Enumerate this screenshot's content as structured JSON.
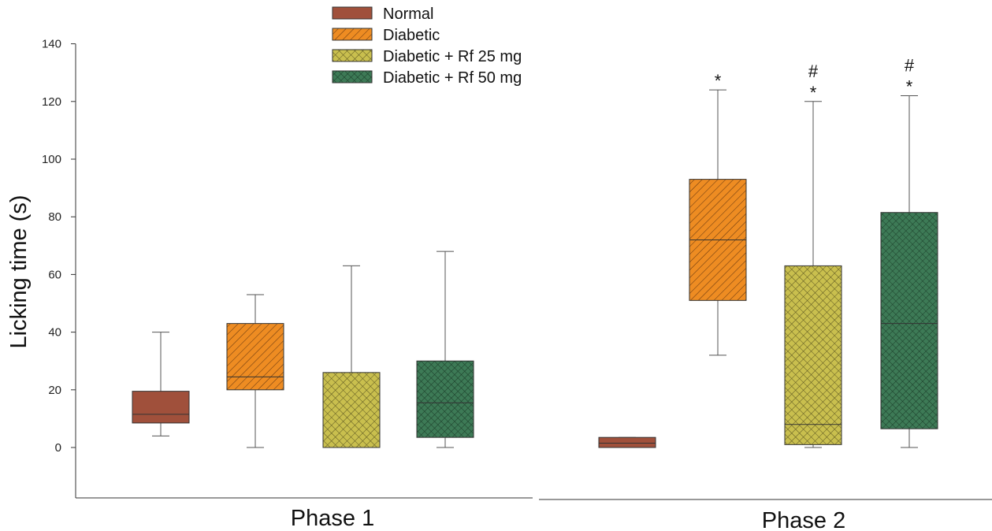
{
  "chart_data": {
    "type": "box",
    "ylabel": "Licking time (s)",
    "ylim": [
      -18,
      140
    ],
    "yticks": [
      0,
      20,
      40,
      60,
      80,
      100,
      120,
      140
    ],
    "grid": false,
    "legend_position": "top-center",
    "groups": [
      "Phase 1",
      "Phase 2"
    ],
    "series": [
      {
        "name": "Normal",
        "color": "#a0503b",
        "pattern": "solid"
      },
      {
        "name": "Diabetic",
        "color": "#ee8c22",
        "pattern": "diagonal"
      },
      {
        "name": "Diabetic + Rf 25 mg",
        "color": "#c9bf4e",
        "pattern": "crosshatch"
      },
      {
        "name": "Diabetic + Rf 50 mg",
        "color": "#3d7a56",
        "pattern": "crosshatch-dense"
      }
    ],
    "boxes": [
      {
        "group": "Phase 1",
        "series": "Normal",
        "min": 4,
        "q1": 8.5,
        "median": 11.5,
        "q3": 19.5,
        "max": 40,
        "annotations": []
      },
      {
        "group": "Phase 1",
        "series": "Diabetic",
        "min": 0,
        "q1": 20,
        "median": 24.5,
        "q3": 43,
        "max": 53,
        "annotations": []
      },
      {
        "group": "Phase 1",
        "series": "Diabetic + Rf 25 mg",
        "min": 0,
        "q1": 0,
        "median": 0,
        "q3": 26,
        "max": 63,
        "annotations": []
      },
      {
        "group": "Phase 1",
        "series": "Diabetic + Rf 50 mg",
        "min": 0,
        "q1": 3.5,
        "median": 15.5,
        "q3": 30,
        "max": 68,
        "annotations": []
      },
      {
        "group": "Phase 2",
        "series": "Normal",
        "min": 0,
        "q1": 0,
        "median": 1.5,
        "q3": 3.5,
        "max": 3.5,
        "annotations": []
      },
      {
        "group": "Phase 2",
        "series": "Diabetic",
        "min": 32,
        "q1": 51,
        "median": 72,
        "q3": 93,
        "max": 124,
        "annotations": [
          "*"
        ]
      },
      {
        "group": "Phase 2",
        "series": "Diabetic + Rf 25 mg",
        "min": 0,
        "q1": 1,
        "median": 8,
        "q3": 63,
        "max": 120,
        "annotations": [
          "#",
          "*"
        ]
      },
      {
        "group": "Phase 2",
        "series": "Diabetic + Rf 50 mg",
        "min": 0,
        "q1": 6.5,
        "median": 43,
        "q3": 81.5,
        "max": 122,
        "annotations": [
          "#",
          "*"
        ]
      }
    ]
  }
}
